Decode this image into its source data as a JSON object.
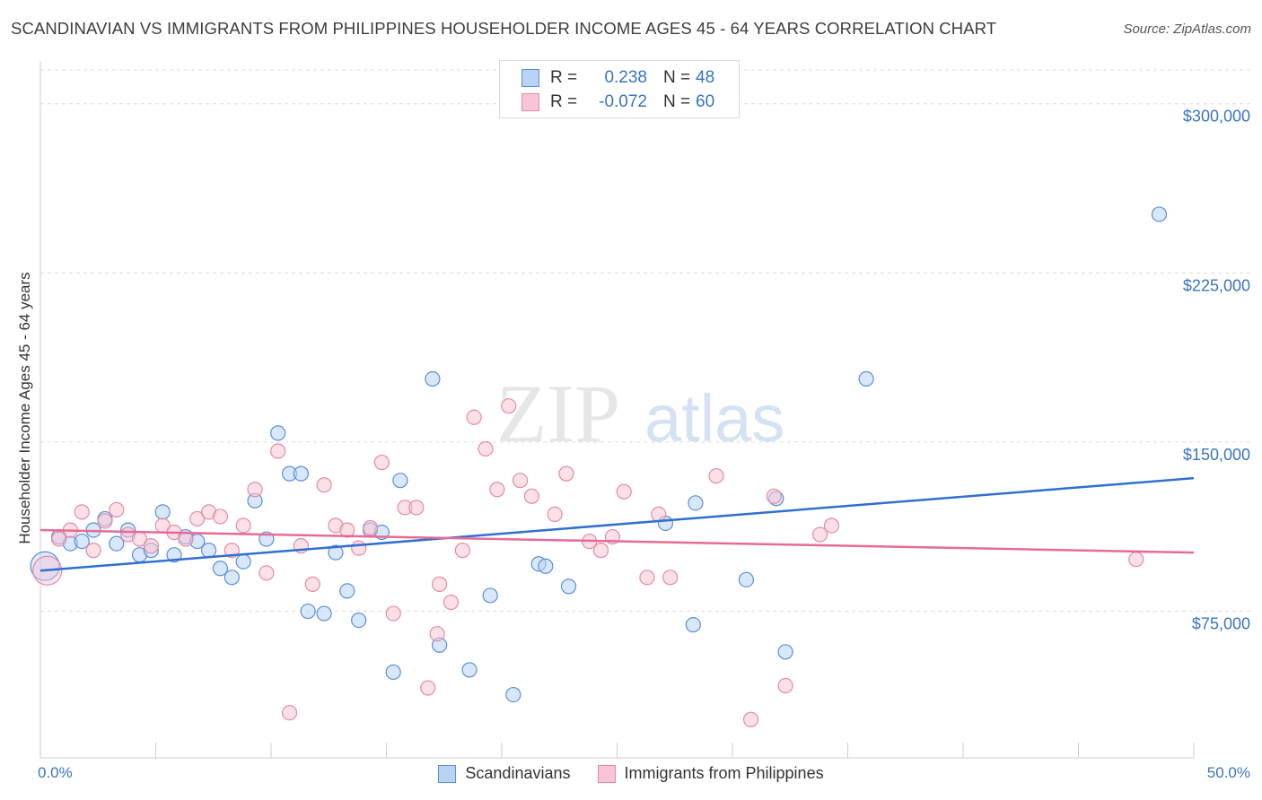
{
  "header": {
    "title": "SCANDINAVIAN VS IMMIGRANTS FROM PHILIPPINES HOUSEHOLDER INCOME AGES 45 - 64 YEARS CORRELATION CHART",
    "source": "Source: ZipAtlas.com"
  },
  "watermark": {
    "zip": "ZIP",
    "atlas": "atlas"
  },
  "colors": {
    "blue_fill": "#b9d3f5",
    "blue_stroke": "#5b8fd6",
    "blue_line": "#2f6fcf",
    "pink_fill": "#f7c6d4",
    "pink_stroke": "#e58aa6",
    "pink_line": "#e56b95",
    "axis_label": "#3a73c4",
    "grid": "#dcdcdc"
  },
  "legend_top": [
    {
      "r_label": "R =",
      "r_value": "0.238",
      "n_label": "N =",
      "n_value": "48"
    },
    {
      "r_label": "R =",
      "r_value": "-0.072",
      "n_label": "N =",
      "n_value": "60"
    }
  ],
  "chart_data": {
    "type": "scatter",
    "title": "SCANDINAVIAN VS IMMIGRANTS FROM PHILIPPINES HOUSEHOLDER INCOME AGES 45 - 64 YEARS CORRELATION CHART",
    "xlabel": "",
    "ylabel": "Householder Income Ages 45 - 64 years",
    "xlim": [
      0,
      50
    ],
    "ylim": [
      10000,
      315000
    ],
    "x_tick_labels": [
      "0.0%",
      "50.0%"
    ],
    "y_ticks": [
      {
        "value": 75000,
        "label": "$75,000"
      },
      {
        "value": 150000,
        "label": "$150,000"
      },
      {
        "value": 225000,
        "label": "$225,000"
      },
      {
        "value": 300000,
        "label": "$300,000"
      }
    ],
    "legend": [
      "Scandinavians",
      "Immigrants from Philippines"
    ],
    "series": [
      {
        "name": "Scandinavians",
        "color": "blue",
        "r": 0.238,
        "n": 48,
        "trend": {
          "x": [
            0,
            50
          ],
          "y": [
            93000,
            134000
          ]
        },
        "points": [
          [
            0.2,
            95000
          ],
          [
            0.8,
            108000
          ],
          [
            1.3,
            105000
          ],
          [
            1.8,
            106000
          ],
          [
            2.3,
            111000
          ],
          [
            2.8,
            116000
          ],
          [
            3.3,
            105000
          ],
          [
            3.8,
            111000
          ],
          [
            4.3,
            100000
          ],
          [
            4.8,
            102000
          ],
          [
            5.3,
            119000
          ],
          [
            5.8,
            100000
          ],
          [
            6.3,
            108000
          ],
          [
            6.8,
            106000
          ],
          [
            7.3,
            102000
          ],
          [
            7.8,
            94000
          ],
          [
            8.3,
            90000
          ],
          [
            8.8,
            97000
          ],
          [
            9.3,
            124000
          ],
          [
            9.8,
            107000
          ],
          [
            10.3,
            154000
          ],
          [
            10.8,
            136000
          ],
          [
            11.3,
            136000
          ],
          [
            11.6,
            75000
          ],
          [
            12.3,
            74000
          ],
          [
            12.8,
            101000
          ],
          [
            13.3,
            84000
          ],
          [
            13.8,
            71000
          ],
          [
            14.3,
            111000
          ],
          [
            14.8,
            110000
          ],
          [
            15.3,
            48000
          ],
          [
            15.6,
            133000
          ],
          [
            17.0,
            178000
          ],
          [
            17.3,
            60000
          ],
          [
            18.6,
            49000
          ],
          [
            19.5,
            82000
          ],
          [
            20.5,
            38000
          ],
          [
            21.6,
            96000
          ],
          [
            21.9,
            95000
          ],
          [
            22.9,
            86000
          ],
          [
            27.1,
            114000
          ],
          [
            28.4,
            123000
          ],
          [
            28.3,
            69000
          ],
          [
            30.6,
            89000
          ],
          [
            31.9,
            125000
          ],
          [
            32.3,
            57000
          ],
          [
            35.8,
            178000
          ],
          [
            48.5,
            251000
          ]
        ]
      },
      {
        "name": "Immigrants from Philippines",
        "color": "pink",
        "r": -0.072,
        "n": 60,
        "trend": {
          "x": [
            0,
            50
          ],
          "y": [
            111000,
            101000
          ]
        },
        "points": [
          [
            0.3,
            93000
          ],
          [
            0.8,
            107000
          ],
          [
            1.3,
            111000
          ],
          [
            1.8,
            119000
          ],
          [
            2.3,
            102000
          ],
          [
            2.8,
            115000
          ],
          [
            3.3,
            120000
          ],
          [
            3.8,
            109000
          ],
          [
            4.3,
            107000
          ],
          [
            4.8,
            104000
          ],
          [
            5.3,
            113000
          ],
          [
            5.8,
            110000
          ],
          [
            6.3,
            107000
          ],
          [
            6.8,
            116000
          ],
          [
            7.3,
            119000
          ],
          [
            7.8,
            117000
          ],
          [
            8.3,
            102000
          ],
          [
            8.8,
            113000
          ],
          [
            9.3,
            129000
          ],
          [
            9.8,
            92000
          ],
          [
            10.3,
            146000
          ],
          [
            10.8,
            30000
          ],
          [
            11.3,
            104000
          ],
          [
            11.8,
            87000
          ],
          [
            12.3,
            131000
          ],
          [
            12.8,
            113000
          ],
          [
            13.3,
            111000
          ],
          [
            13.8,
            103000
          ],
          [
            14.3,
            112000
          ],
          [
            14.8,
            141000
          ],
          [
            15.3,
            74000
          ],
          [
            15.8,
            121000
          ],
          [
            16.3,
            121000
          ],
          [
            16.8,
            41000
          ],
          [
            17.3,
            87000
          ],
          [
            17.8,
            79000
          ],
          [
            18.3,
            102000
          ],
          [
            18.8,
            161000
          ],
          [
            19.3,
            147000
          ],
          [
            19.8,
            129000
          ],
          [
            20.3,
            166000
          ],
          [
            20.8,
            133000
          ],
          [
            21.3,
            126000
          ],
          [
            22.3,
            118000
          ],
          [
            22.8,
            136000
          ],
          [
            23.8,
            106000
          ],
          [
            24.3,
            102000
          ],
          [
            24.8,
            108000
          ],
          [
            25.3,
            128000
          ],
          [
            26.3,
            90000
          ],
          [
            26.8,
            118000
          ],
          [
            27.3,
            90000
          ],
          [
            29.3,
            135000
          ],
          [
            30.8,
            27000
          ],
          [
            31.8,
            126000
          ],
          [
            32.3,
            42000
          ],
          [
            33.8,
            109000
          ],
          [
            34.3,
            113000
          ],
          [
            47.5,
            98000
          ],
          [
            17.2,
            65000
          ]
        ]
      }
    ]
  }
}
